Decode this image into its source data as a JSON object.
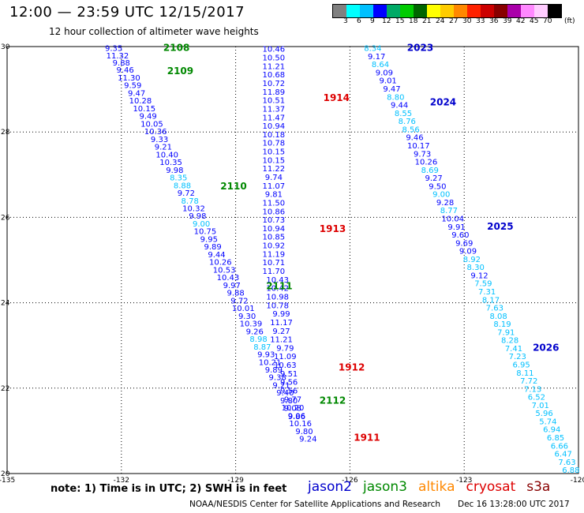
{
  "header": {
    "title": "12:00 — 23:59 UTC 12/15/2017",
    "subtitle": "12 hour collection of altimeter wave heights"
  },
  "legend": {
    "unit": "(ft)",
    "colors": [
      "#808080",
      "#00ffff",
      "#00c0ff",
      "#0000ff",
      "#00aa66",
      "#00cc00",
      "#006600",
      "#ffff00",
      "#ffcc00",
      "#ff8800",
      "#ff2200",
      "#cc0000",
      "#880000",
      "#aa00aa",
      "#ff88ff",
      "#ffccff",
      "#000000"
    ],
    "labels": [
      "3",
      "6",
      "9",
      "12",
      "15",
      "18",
      "21",
      "24",
      "27",
      "30",
      "33",
      "36",
      "39",
      "42",
      "45",
      "70"
    ]
  },
  "axes": {
    "x_ticks": [
      "-135",
      "-132",
      "-129",
      "-126",
      "-123",
      "-120"
    ],
    "y_ticks": [
      "30",
      "28",
      "26",
      "24",
      "22",
      "20"
    ]
  },
  "tracks": [
    {
      "lon": -132.2,
      "lat": 29.97,
      "value": "9.35",
      "color": "#0000ff"
    },
    {
      "lon": -132.1,
      "lat": 29.8,
      "value": "11.32",
      "color": "#0000ff"
    },
    {
      "lon": -132.0,
      "lat": 29.63,
      "value": "9.88",
      "color": "#0000ff"
    },
    {
      "lon": -131.9,
      "lat": 29.46,
      "value": "9.46",
      "color": "#0000ff"
    },
    {
      "lon": -131.8,
      "lat": 29.28,
      "value": "11.30",
      "color": "#0000ff"
    },
    {
      "lon": -131.7,
      "lat": 29.1,
      "value": "9.59",
      "color": "#0000ff"
    },
    {
      "lon": -131.6,
      "lat": 28.92,
      "value": "9.47",
      "color": "#0000ff"
    },
    {
      "lon": -131.5,
      "lat": 28.74,
      "value": "10.28",
      "color": "#0000ff"
    },
    {
      "lon": -131.4,
      "lat": 28.56,
      "value": "10.15",
      "color": "#0000ff"
    },
    {
      "lon": -131.3,
      "lat": 28.38,
      "value": "9.49",
      "color": "#0000ff"
    },
    {
      "lon": -131.2,
      "lat": 28.2,
      "value": "10.05",
      "color": "#0000ff"
    },
    {
      "lon": -131.1,
      "lat": 28.02,
      "value": "10.36",
      "color": "#0000ff"
    },
    {
      "lon": -131.0,
      "lat": 27.84,
      "value": "9.33",
      "color": "#0000ff"
    },
    {
      "lon": -130.9,
      "lat": 27.66,
      "value": "9.21",
      "color": "#0000ff"
    },
    {
      "lon": -130.8,
      "lat": 27.48,
      "value": "10.40",
      "color": "#0000ff"
    },
    {
      "lon": -130.7,
      "lat": 27.3,
      "value": "10.35",
      "color": "#0000ff"
    },
    {
      "lon": -130.6,
      "lat": 27.12,
      "value": "9.98",
      "color": "#0000ff"
    },
    {
      "lon": -130.5,
      "lat": 26.94,
      "value": "8.35",
      "color": "#00c0ff"
    },
    {
      "lon": -130.4,
      "lat": 26.76,
      "value": "8.88",
      "color": "#00c0ff"
    },
    {
      "lon": -130.3,
      "lat": 26.58,
      "value": "9.72",
      "color": "#0000ff"
    },
    {
      "lon": -130.2,
      "lat": 26.4,
      "value": "8.78",
      "color": "#00c0ff"
    },
    {
      "lon": -130.1,
      "lat": 26.22,
      "value": "10.32",
      "color": "#0000ff"
    },
    {
      "lon": -130.0,
      "lat": 26.04,
      "value": "9.98",
      "color": "#0000ff"
    },
    {
      "lon": -129.9,
      "lat": 25.86,
      "value": "9.00",
      "color": "#00c0ff"
    },
    {
      "lon": -129.8,
      "lat": 25.68,
      "value": "10.75",
      "color": "#0000ff"
    },
    {
      "lon": -129.7,
      "lat": 25.5,
      "value": "9.95",
      "color": "#0000ff"
    },
    {
      "lon": -129.6,
      "lat": 25.32,
      "value": "9.89",
      "color": "#0000ff"
    },
    {
      "lon": -129.5,
      "lat": 25.14,
      "value": "9.44",
      "color": "#0000ff"
    },
    {
      "lon": -129.4,
      "lat": 24.96,
      "value": "10.26",
      "color": "#0000ff"
    },
    {
      "lon": -129.3,
      "lat": 24.78,
      "value": "10.53",
      "color": "#0000ff"
    },
    {
      "lon": -129.2,
      "lat": 24.6,
      "value": "10.43",
      "color": "#0000ff"
    },
    {
      "lon": -129.1,
      "lat": 24.42,
      "value": "9.97",
      "color": "#0000ff"
    },
    {
      "lon": -129.0,
      "lat": 24.24,
      "value": "9.88",
      "color": "#0000ff"
    },
    {
      "lon": -128.9,
      "lat": 24.06,
      "value": "9.72",
      "color": "#0000ff"
    },
    {
      "lon": -128.8,
      "lat": 23.88,
      "value": "10.01",
      "color": "#0000ff"
    },
    {
      "lon": -128.7,
      "lat": 23.7,
      "value": "9.30",
      "color": "#0000ff"
    },
    {
      "lon": -128.6,
      "lat": 23.52,
      "value": "10.39",
      "color": "#0000ff"
    },
    {
      "lon": -128.5,
      "lat": 23.34,
      "value": "9.26",
      "color": "#0000ff"
    },
    {
      "lon": -128.4,
      "lat": 23.16,
      "value": "8.98",
      "color": "#00c0ff"
    },
    {
      "lon": -128.3,
      "lat": 22.98,
      "value": "8.87",
      "color": "#00c0ff"
    },
    {
      "lon": -128.2,
      "lat": 22.8,
      "value": "9.93",
      "color": "#0000ff"
    },
    {
      "lon": -128.1,
      "lat": 22.62,
      "value": "10.21",
      "color": "#0000ff"
    },
    {
      "lon": -128.0,
      "lat": 22.44,
      "value": "9.89",
      "color": "#0000ff"
    },
    {
      "lon": -127.9,
      "lat": 22.26,
      "value": "9.38",
      "color": "#0000ff"
    },
    {
      "lon": -127.8,
      "lat": 22.08,
      "value": "9.21",
      "color": "#0000ff"
    },
    {
      "lon": -127.7,
      "lat": 21.9,
      "value": "9.40",
      "color": "#0000ff"
    },
    {
      "lon": -127.6,
      "lat": 21.72,
      "value": "9.80",
      "color": "#0000ff"
    },
    {
      "lon": -127.5,
      "lat": 21.54,
      "value": "9.08",
      "color": "#0000ff"
    },
    {
      "lon": -127.4,
      "lat": 21.36,
      "value": "9.06",
      "color": "#0000ff"
    },
    {
      "lon": -127.3,
      "lat": 21.18,
      "value": "10.16",
      "color": "#0000ff"
    },
    {
      "lon": -127.2,
      "lat": 21.0,
      "value": "9.80",
      "color": "#0000ff"
    },
    {
      "lon": -127.1,
      "lat": 20.82,
      "value": "9.24",
      "color": "#0000ff"
    },
    {
      "lon": -128.0,
      "lat": 29.95,
      "value": "10.46",
      "color": "#0000ff"
    },
    {
      "lon": -128.0,
      "lat": 29.75,
      "value": "10.50",
      "color": "#0000ff"
    },
    {
      "lon": -128.0,
      "lat": 29.55,
      "value": "11.21",
      "color": "#0000ff"
    },
    {
      "lon": -128.0,
      "lat": 29.35,
      "value": "10.68",
      "color": "#0000ff"
    },
    {
      "lon": -128.0,
      "lat": 29.15,
      "value": "10.72",
      "color": "#0000ff"
    },
    {
      "lon": -128.0,
      "lat": 28.95,
      "value": "11.89",
      "color": "#0000ff"
    },
    {
      "lon": -128.0,
      "lat": 28.75,
      "value": "10.51",
      "color": "#0000ff"
    },
    {
      "lon": -128.0,
      "lat": 28.55,
      "value": "11.37",
      "color": "#0000ff"
    },
    {
      "lon": -128.0,
      "lat": 28.35,
      "value": "11.47",
      "color": "#0000ff"
    },
    {
      "lon": -128.0,
      "lat": 28.15,
      "value": "10.94",
      "color": "#0000ff"
    },
    {
      "lon": -128.0,
      "lat": 27.95,
      "value": "10.18",
      "color": "#0000ff"
    },
    {
      "lon": -128.0,
      "lat": 27.75,
      "value": "10.78",
      "color": "#0000ff"
    },
    {
      "lon": -128.0,
      "lat": 27.55,
      "value": "10.15",
      "color": "#0000ff"
    },
    {
      "lon": -128.0,
      "lat": 27.35,
      "value": "10.15",
      "color": "#0000ff"
    },
    {
      "lon": -128.0,
      "lat": 27.15,
      "value": "11.22",
      "color": "#0000ff"
    },
    {
      "lon": -128.0,
      "lat": 26.95,
      "value": "9.74",
      "color": "#0000ff"
    },
    {
      "lon": -128.0,
      "lat": 26.75,
      "value": "11.07",
      "color": "#0000ff"
    },
    {
      "lon": -128.0,
      "lat": 26.55,
      "value": "9.81",
      "color": "#0000ff"
    },
    {
      "lon": -128.0,
      "lat": 26.35,
      "value": "11.50",
      "color": "#0000ff"
    },
    {
      "lon": -128.0,
      "lat": 26.15,
      "value": "10.86",
      "color": "#0000ff"
    },
    {
      "lon": -128.0,
      "lat": 25.95,
      "value": "10.73",
      "color": "#0000ff"
    },
    {
      "lon": -128.0,
      "lat": 25.75,
      "value": "10.94",
      "color": "#0000ff"
    },
    {
      "lon": -128.0,
      "lat": 25.55,
      "value": "10.85",
      "color": "#0000ff"
    },
    {
      "lon": -128.0,
      "lat": 25.35,
      "value": "10.92",
      "color": "#0000ff"
    },
    {
      "lon": -128.0,
      "lat": 25.15,
      "value": "11.19",
      "color": "#0000ff"
    },
    {
      "lon": -128.0,
      "lat": 24.95,
      "value": "10.71",
      "color": "#0000ff"
    },
    {
      "lon": -128.0,
      "lat": 24.75,
      "value": "11.70",
      "color": "#0000ff"
    },
    {
      "lon": -127.9,
      "lat": 24.55,
      "value": "10.43",
      "color": "#0000ff"
    },
    {
      "lon": -127.9,
      "lat": 24.35,
      "value": "10.42",
      "color": "#0000ff"
    },
    {
      "lon": -127.9,
      "lat": 24.15,
      "value": "10.98",
      "color": "#0000ff"
    },
    {
      "lon": -127.9,
      "lat": 23.95,
      "value": "10.78",
      "color": "#0000ff"
    },
    {
      "lon": -127.8,
      "lat": 23.75,
      "value": "9.99",
      "color": "#0000ff"
    },
    {
      "lon": -127.8,
      "lat": 23.55,
      "value": "11.17",
      "color": "#0000ff"
    },
    {
      "lon": -127.8,
      "lat": 23.35,
      "value": "9.27",
      "color": "#0000ff"
    },
    {
      "lon": -127.8,
      "lat": 23.15,
      "value": "11.21",
      "color": "#0000ff"
    },
    {
      "lon": -127.7,
      "lat": 22.95,
      "value": "9.79",
      "color": "#0000ff"
    },
    {
      "lon": -127.7,
      "lat": 22.75,
      "value": "11.09",
      "color": "#0000ff"
    },
    {
      "lon": -127.7,
      "lat": 22.55,
      "value": "10.63",
      "color": "#0000ff"
    },
    {
      "lon": -127.6,
      "lat": 22.35,
      "value": "9.51",
      "color": "#0000ff"
    },
    {
      "lon": -127.6,
      "lat": 22.15,
      "value": "9.56",
      "color": "#0000ff"
    },
    {
      "lon": -127.6,
      "lat": 21.95,
      "value": "9.56",
      "color": "#0000ff"
    },
    {
      "lon": -127.5,
      "lat": 21.75,
      "value": "9.77",
      "color": "#0000ff"
    },
    {
      "lon": -127.5,
      "lat": 21.55,
      "value": "10.20",
      "color": "#0000ff"
    },
    {
      "lon": -127.4,
      "lat": 21.35,
      "value": "9.86",
      "color": "#0000ff"
    },
    {
      "lon": -125.4,
      "lat": 29.97,
      "value": "8.34",
      "color": "#00c0ff"
    },
    {
      "lon": -125.3,
      "lat": 29.78,
      "value": "9.17",
      "color": "#0000ff"
    },
    {
      "lon": -125.2,
      "lat": 29.59,
      "value": "8.64",
      "color": "#00c0ff"
    },
    {
      "lon": -125.1,
      "lat": 29.4,
      "value": "9.09",
      "color": "#0000ff"
    },
    {
      "lon": -125.0,
      "lat": 29.21,
      "value": "9.01",
      "color": "#0000ff"
    },
    {
      "lon": -124.9,
      "lat": 29.02,
      "value": "9.47",
      "color": "#0000ff"
    },
    {
      "lon": -124.8,
      "lat": 28.83,
      "value": "8.80",
      "color": "#00c0ff"
    },
    {
      "lon": -124.7,
      "lat": 28.64,
      "value": "9.44",
      "color": "#0000ff"
    },
    {
      "lon": -124.6,
      "lat": 28.45,
      "value": "8.55",
      "color": "#00c0ff"
    },
    {
      "lon": -124.5,
      "lat": 28.26,
      "value": "8.76",
      "color": "#00c0ff"
    },
    {
      "lon": -124.4,
      "lat": 28.07,
      "value": "8.56",
      "color": "#00c0ff"
    },
    {
      "lon": -124.3,
      "lat": 27.88,
      "value": "9.46",
      "color": "#0000ff"
    },
    {
      "lon": -124.2,
      "lat": 27.69,
      "value": "10.17",
      "color": "#0000ff"
    },
    {
      "lon": -124.1,
      "lat": 27.5,
      "value": "9.73",
      "color": "#0000ff"
    },
    {
      "lon": -124.0,
      "lat": 27.31,
      "value": "10.26",
      "color": "#0000ff"
    },
    {
      "lon": -123.9,
      "lat": 27.12,
      "value": "8.69",
      "color": "#00c0ff"
    },
    {
      "lon": -123.8,
      "lat": 26.93,
      "value": "9.27",
      "color": "#0000ff"
    },
    {
      "lon": -123.7,
      "lat": 26.74,
      "value": "9.50",
      "color": "#0000ff"
    },
    {
      "lon": -123.6,
      "lat": 26.55,
      "value": "9.00",
      "color": "#00c0ff"
    },
    {
      "lon": -123.5,
      "lat": 26.36,
      "value": "9.28",
      "color": "#0000ff"
    },
    {
      "lon": -123.4,
      "lat": 26.17,
      "value": "8.77",
      "color": "#00c0ff"
    },
    {
      "lon": -123.3,
      "lat": 25.98,
      "value": "10.04",
      "color": "#0000ff"
    },
    {
      "lon": -123.2,
      "lat": 25.79,
      "value": "9.91",
      "color": "#0000ff"
    },
    {
      "lon": -123.1,
      "lat": 25.6,
      "value": "9.60",
      "color": "#0000ff"
    },
    {
      "lon": -123.0,
      "lat": 25.41,
      "value": "9.69",
      "color": "#0000ff"
    },
    {
      "lon": -122.9,
      "lat": 25.22,
      "value": "9.09",
      "color": "#0000ff"
    },
    {
      "lon": -122.8,
      "lat": 25.03,
      "value": "8.92",
      "color": "#00c0ff"
    },
    {
      "lon": -122.7,
      "lat": 24.84,
      "value": "8.30",
      "color": "#00c0ff"
    },
    {
      "lon": -122.6,
      "lat": 24.65,
      "value": "9.12",
      "color": "#0000ff"
    },
    {
      "lon": -122.5,
      "lat": 24.46,
      "value": "7.59",
      "color": "#00c0ff"
    },
    {
      "lon": -122.4,
      "lat": 24.27,
      "value": "7.31",
      "color": "#00c0ff"
    },
    {
      "lon": -122.3,
      "lat": 24.08,
      "value": "8.17",
      "color": "#00c0ff"
    },
    {
      "lon": -122.2,
      "lat": 23.89,
      "value": "7.63",
      "color": "#00c0ff"
    },
    {
      "lon": -122.1,
      "lat": 23.7,
      "value": "8.08",
      "color": "#00c0ff"
    },
    {
      "lon": -122.0,
      "lat": 23.51,
      "value": "8.19",
      "color": "#00c0ff"
    },
    {
      "lon": -121.9,
      "lat": 23.32,
      "value": "7.91",
      "color": "#00c0ff"
    },
    {
      "lon": -121.8,
      "lat": 23.13,
      "value": "8.28",
      "color": "#00c0ff"
    },
    {
      "lon": -121.7,
      "lat": 22.94,
      "value": "7.41",
      "color": "#00c0ff"
    },
    {
      "lon": -121.6,
      "lat": 22.75,
      "value": "7.23",
      "color": "#00c0ff"
    },
    {
      "lon": -121.5,
      "lat": 22.56,
      "value": "6.95",
      "color": "#00c0ff"
    },
    {
      "lon": -121.4,
      "lat": 22.37,
      "value": "8.11",
      "color": "#00c0ff"
    },
    {
      "lon": -121.3,
      "lat": 22.18,
      "value": "7.72",
      "color": "#00c0ff"
    },
    {
      "lon": -121.2,
      "lat": 21.99,
      "value": "7.13",
      "color": "#00c0ff"
    },
    {
      "lon": -121.1,
      "lat": 21.8,
      "value": "6.52",
      "color": "#00c0ff"
    },
    {
      "lon": -121.0,
      "lat": 21.61,
      "value": "7.01",
      "color": "#00c0ff"
    },
    {
      "lon": -120.9,
      "lat": 21.42,
      "value": "5.96",
      "color": "#00c0ff"
    },
    {
      "lon": -120.8,
      "lat": 21.23,
      "value": "5.74",
      "color": "#00c0ff"
    },
    {
      "lon": -120.7,
      "lat": 21.04,
      "value": "6.94",
      "color": "#00c0ff"
    },
    {
      "lon": -120.6,
      "lat": 20.85,
      "value": "6.85",
      "color": "#00c0ff"
    },
    {
      "lon": -120.5,
      "lat": 20.66,
      "value": "6.66",
      "color": "#00c0ff"
    },
    {
      "lon": -120.4,
      "lat": 20.47,
      "value": "6.47",
      "color": "#00c0ff"
    },
    {
      "lon": -120.3,
      "lat": 20.28,
      "value": "7.63",
      "color": "#00c0ff"
    },
    {
      "lon": -120.2,
      "lat": 20.09,
      "value": "6.88",
      "color": "#00c0ff"
    }
  ],
  "pass_labels": [
    {
      "text": "2108",
      "lon": -130.9,
      "lat": 29.97,
      "color": "#008800"
    },
    {
      "text": "2109",
      "lon": -130.8,
      "lat": 29.43,
      "color": "#008800"
    },
    {
      "text": "1914",
      "lon": -126.7,
      "lat": 28.8,
      "color": "#dd0000"
    },
    {
      "text": "2110",
      "lon": -129.4,
      "lat": 26.73,
      "color": "#008800"
    },
    {
      "text": "1913",
      "lon": -126.8,
      "lat": 25.73,
      "color": "#dd0000"
    },
    {
      "text": "2111",
      "lon": -128.2,
      "lat": 24.39,
      "color": "#008800"
    },
    {
      "text": "1912",
      "lon": -126.3,
      "lat": 22.49,
      "color": "#dd0000"
    },
    {
      "text": "2112",
      "lon": -126.8,
      "lat": 21.71,
      "color": "#008800"
    },
    {
      "text": "1911",
      "lon": -125.9,
      "lat": 20.84,
      "color": "#dd0000"
    },
    {
      "text": "2023",
      "lon": -124.5,
      "lat": 29.97,
      "color": "#0000cc"
    },
    {
      "text": "2024",
      "lon": -123.9,
      "lat": 28.7,
      "color": "#0000cc"
    },
    {
      "text": "2025",
      "lon": -122.4,
      "lat": 25.79,
      "color": "#0000cc"
    },
    {
      "text": "2026",
      "lon": -121.2,
      "lat": 22.95,
      "color": "#0000cc"
    }
  ],
  "footer": {
    "note": "note: 1) Time is in UTC; 2) SWH is in feet",
    "satellites": [
      {
        "name": "jason2",
        "color": "#0000cc"
      },
      {
        "name": "jason3",
        "color": "#008800"
      },
      {
        "name": "altika",
        "color": "#ff8800"
      },
      {
        "name": "cryosat",
        "color": "#dd0000"
      },
      {
        "name": "s3a",
        "color": "#880000"
      }
    ],
    "credit": "NOAA/NESDIS Center for Satellite Applications and Research",
    "timestamp": "Dec 16 13:28:00 UTC 2017"
  }
}
